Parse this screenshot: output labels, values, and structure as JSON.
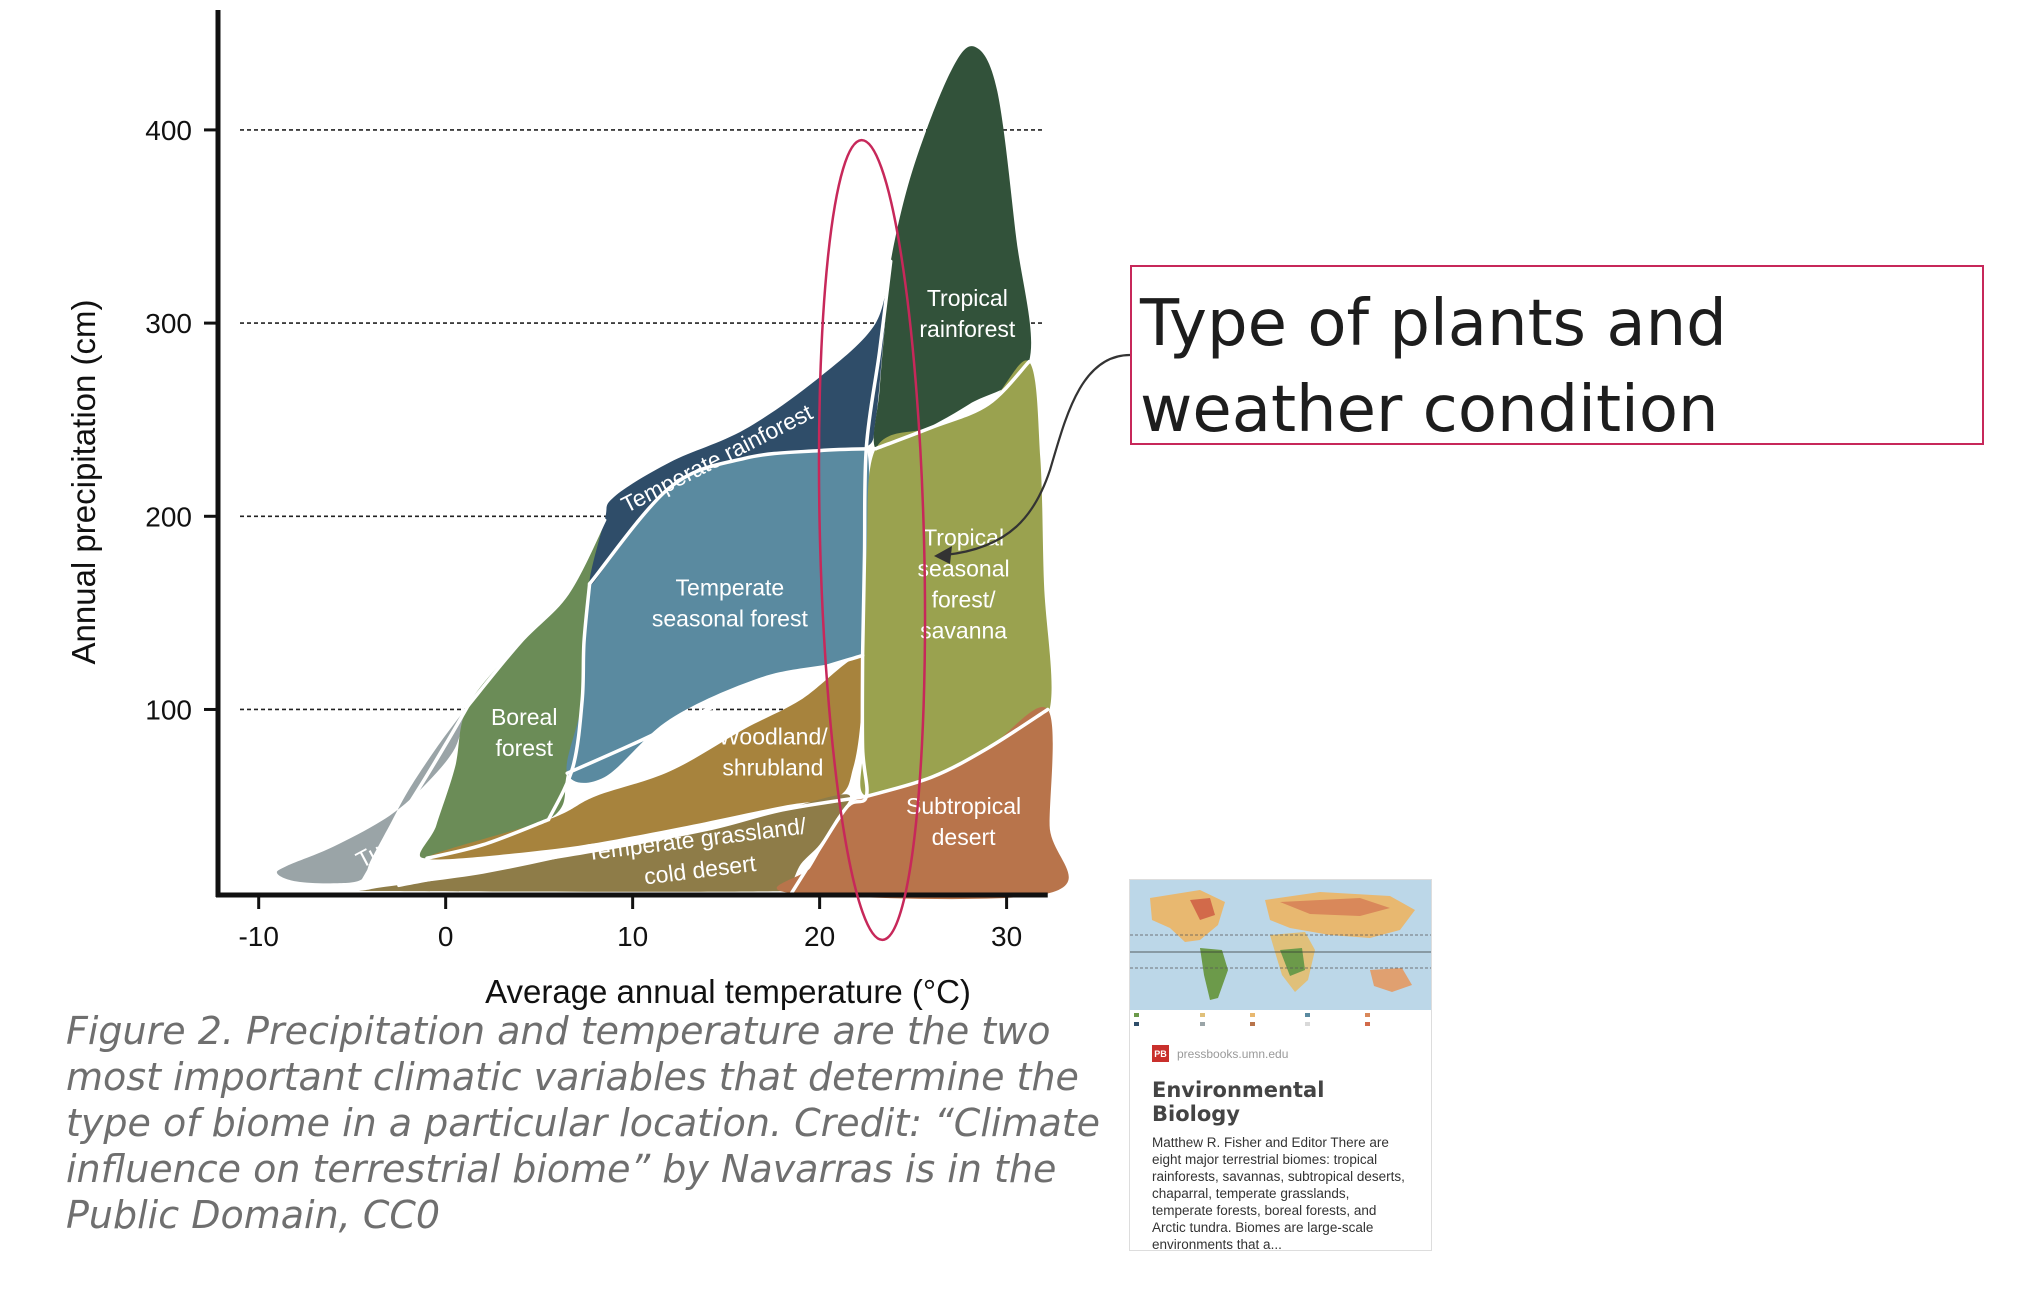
{
  "chart_data": {
    "type": "area",
    "xlabel": "Average annual temperature (°C)",
    "ylabel": "Annual precipitation (cm)",
    "xlim": [
      -11,
      32
    ],
    "ylim": [
      5,
      460
    ],
    "x_ticks": [
      -10,
      0,
      10,
      20,
      30
    ],
    "y_ticks": [
      100,
      200,
      300,
      400
    ],
    "grid": "dashed horizontal at y ticks",
    "regions": [
      {
        "label_lines": [
          "Tundra"
        ],
        "color": "#9aa4a7",
        "label_at": [
          -3,
          30
        ],
        "label_rotate": -28,
        "polygon": [
          [
            -9,
            15
          ],
          [
            -8.5,
            19
          ],
          [
            -6,
            29
          ],
          [
            -3,
            45
          ],
          [
            -1,
            62
          ],
          [
            0.5,
            80
          ],
          [
            1,
            98
          ],
          [
            1.2,
            102
          ],
          [
            -0.5,
            80
          ],
          [
            -2,
            58
          ],
          [
            -3,
            40
          ],
          [
            -4,
            22
          ],
          [
            -4.5,
            12
          ],
          [
            -6,
            10
          ],
          [
            -8,
            11
          ]
        ]
      },
      {
        "label_lines": [
          "Boreal",
          "forest"
        ],
        "color": "#6b8c57",
        "label_at": [
          4.2,
          88
        ],
        "label_rotate": 0,
        "polygon": [
          [
            1.2,
            102
          ],
          [
            4,
            135
          ],
          [
            6.5,
            160
          ],
          [
            8.5,
            198
          ],
          [
            7.7,
            165
          ],
          [
            7.4,
            130
          ],
          [
            7.2,
            100
          ],
          [
            6.5,
            67
          ],
          [
            5.5,
            43
          ],
          [
            -1,
            23
          ],
          [
            -0.5,
            40
          ],
          [
            0.5,
            70
          ]
        ]
      },
      {
        "label_lines": [
          "Temperate",
          "seasonal forest"
        ],
        "color": "#5a8aa0",
        "label_at": [
          15.2,
          155
        ],
        "label_rotate": 0,
        "polygon": [
          [
            7.7,
            165
          ],
          [
            9,
            180
          ],
          [
            12,
            215
          ],
          [
            16,
            230
          ],
          [
            20,
            234
          ],
          [
            22.5,
            236
          ],
          [
            22.4,
            150
          ],
          [
            22.2,
            128
          ],
          [
            17,
            117
          ],
          [
            12,
            95
          ],
          [
            8.5,
            65
          ],
          [
            6.5,
            67
          ],
          [
            7.2,
            100
          ],
          [
            7.4,
            130
          ]
        ]
      },
      {
        "label_lines": [
          "Temperate rainforest"
        ],
        "color": "#2f4d69",
        "label_at": [
          14.5,
          230
        ],
        "label_rotate": -27,
        "polygon": [
          [
            8.5,
            198
          ],
          [
            9,
            210
          ],
          [
            12,
            228
          ],
          [
            16,
            245
          ],
          [
            20,
            272
          ],
          [
            23,
            300
          ],
          [
            23.8,
            332
          ],
          [
            23.4,
            290
          ],
          [
            23,
            250
          ],
          [
            22.5,
            236
          ],
          [
            20,
            234
          ],
          [
            16,
            230
          ],
          [
            12,
            215
          ],
          [
            9,
            180
          ],
          [
            7.7,
            165
          ]
        ]
      },
      {
        "label_lines": [
          "Tropical",
          "rainforest"
        ],
        "color": "#32523a",
        "label_at": [
          27.9,
          305
        ],
        "label_rotate": 0,
        "polygon": [
          [
            23.8,
            332
          ],
          [
            25,
            380
          ],
          [
            27,
            430
          ],
          [
            28.3,
            443
          ],
          [
            29.5,
            420
          ],
          [
            30.5,
            345
          ],
          [
            31.2,
            280
          ],
          [
            28,
            258
          ],
          [
            25,
            242
          ],
          [
            23,
            235
          ],
          [
            23.2,
            265
          ],
          [
            23.5,
            300
          ]
        ]
      },
      {
        "label_lines": [
          "Woodland/",
          "shrubland"
        ],
        "color": "#a7833d",
        "label_at": [
          17.5,
          78
        ],
        "label_rotate": 0,
        "polygon": [
          [
            5.5,
            43
          ],
          [
            8,
            55
          ],
          [
            12,
            68
          ],
          [
            16,
            90
          ],
          [
            19,
            105
          ],
          [
            22.3,
            128
          ],
          [
            22.2,
            95
          ],
          [
            21.8,
            70
          ],
          [
            21,
            55
          ],
          [
            18,
            50
          ],
          [
            12,
            38
          ],
          [
            6,
            28
          ],
          [
            -1,
            23
          ]
        ]
      },
      {
        "label_lines": [
          "Temperate grassland/",
          "cold desert"
        ],
        "color": "#8e7c48",
        "label_at": [
          13.5,
          25
        ],
        "label_rotate": -7,
        "polygon": [
          [
            -4,
            7
          ],
          [
            2,
            15
          ],
          [
            8,
            27
          ],
          [
            14,
            38
          ],
          [
            18,
            48
          ],
          [
            21.5,
            56
          ],
          [
            20.8,
            42
          ],
          [
            20,
            30
          ],
          [
            19,
            20
          ],
          [
            18.5,
            10
          ],
          [
            18,
            6
          ],
          [
            -2,
            6
          ]
        ]
      },
      {
        "label_lines": [
          "Tropical",
          "seasonal",
          "forest/",
          "savanna"
        ],
        "color": "#9aa24f",
        "label_at": [
          27.7,
          165
        ],
        "label_rotate": 0,
        "polygon": [
          [
            23,
            235
          ],
          [
            26,
            246
          ],
          [
            29,
            258
          ],
          [
            31.2,
            280
          ],
          [
            31.8,
            230
          ],
          [
            32,
            165
          ],
          [
            32.3,
            100
          ],
          [
            30,
            85
          ],
          [
            26,
            65
          ],
          [
            22.5,
            55
          ],
          [
            22.3,
            80
          ],
          [
            22.3,
            128
          ],
          [
            22.5,
            180
          ]
        ]
      },
      {
        "label_lines": [
          "Subtropical",
          "desert"
        ],
        "color": "#b8744b",
        "label_at": [
          27.7,
          42
        ],
        "label_rotate": 0,
        "polygon": [
          [
            22.5,
            55
          ],
          [
            26,
            65
          ],
          [
            29,
            80
          ],
          [
            32.2,
            100
          ],
          [
            32.3,
            40
          ],
          [
            32.3,
            5
          ],
          [
            18.5,
            5
          ],
          [
            19.5,
            18
          ],
          [
            20.5,
            35
          ],
          [
            21.5,
            50
          ]
        ]
      }
    ],
    "boundaries": [
      [
        [
          -4.5,
          10
        ],
        [
          -3,
          35
        ],
        [
          -1.5,
          58
        ],
        [
          0,
          82
        ],
        [
          1.2,
          102
        ]
      ],
      [
        [
          -1,
          23
        ],
        [
          2,
          30
        ],
        [
          5.5,
          43
        ]
      ],
      [
        [
          -2.5,
          9
        ],
        [
          3,
          19
        ],
        [
          8,
          27
        ],
        [
          14,
          38
        ],
        [
          18,
          48
        ],
        [
          22.5,
          55
        ]
      ],
      [
        [
          1.2,
          102
        ],
        [
          4,
          135
        ],
        [
          6.5,
          160
        ],
        [
          8.5,
          198
        ]
      ],
      [
        [
          5.5,
          43
        ],
        [
          6.8,
          70
        ],
        [
          7.3,
          105
        ],
        [
          7.4,
          135
        ],
        [
          7.7,
          165
        ]
      ],
      [
        [
          7.7,
          165
        ],
        [
          12,
          215
        ],
        [
          16,
          230
        ],
        [
          20,
          234
        ],
        [
          23,
          235
        ]
      ],
      [
        [
          6.5,
          67
        ],
        [
          10,
          82
        ],
        [
          14,
          100
        ],
        [
          18,
          115
        ],
        [
          22.3,
          128
        ]
      ],
      [
        [
          22.3,
          128
        ],
        [
          22.4,
          180
        ],
        [
          22.5,
          236
        ],
        [
          23.2,
          285
        ],
        [
          23.8,
          332
        ]
      ],
      [
        [
          23,
          235
        ],
        [
          26,
          246
        ],
        [
          29,
          258
        ],
        [
          31.2,
          280
        ]
      ],
      [
        [
          22.5,
          55
        ],
        [
          26,
          65
        ],
        [
          29,
          80
        ],
        [
          32.2,
          100
        ]
      ],
      [
        [
          18.5,
          5
        ],
        [
          20,
          28
        ],
        [
          21.5,
          50
        ],
        [
          22.5,
          55
        ],
        [
          22.3,
          80
        ],
        [
          22.3,
          128
        ]
      ]
    ]
  },
  "annotations": {
    "callout_text": "Type of plants and weather condition possible indoors",
    "ellipse_color": "#c7285a"
  },
  "caption": "Figure 2. Precipitation and temperature are the two most important climatic variables that determine the type of biome in a particular location. Credit: “Climate influence on terrestrial biome” by Navarras is in the Public Domain, CC0",
  "link_card": {
    "source_badge": "PB",
    "source": "pressbooks.umn.edu",
    "title": "Environmental Biology",
    "description": "Matthew R. Fisher and Editor There are eight major terrestrial biomes: tropical rainforests, savannas, subtropical deserts, chaparral, temperate grasslands, temperate forests, boreal forests, and Arctic tundra. Biomes are large-scale environments that a..."
  }
}
